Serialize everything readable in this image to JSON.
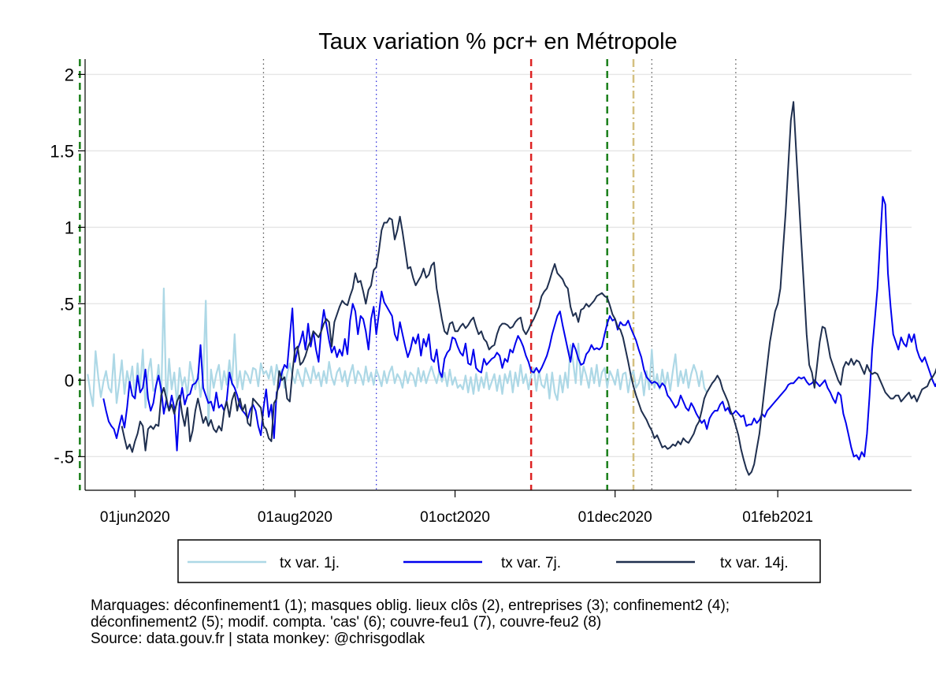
{
  "chart_data": {
    "type": "line",
    "title": "Taux variation % pcr+ en Métropole",
    "xlabel": "",
    "ylabel": "",
    "x_range": [
      "2020-05-13",
      "2021-03-24"
    ],
    "ylim": [
      -0.72,
      2.1
    ],
    "y_ticks": [
      {
        "v": 2,
        "label": "2"
      },
      {
        "v": 1.5,
        "label": "1.5"
      },
      {
        "v": 1,
        "label": "1"
      },
      {
        "v": 0.5,
        "label": ".5"
      },
      {
        "v": 0,
        "label": "0"
      },
      {
        "v": -0.5,
        "label": "-.5"
      }
    ],
    "x_ticks": [
      {
        "date": "2020-06-01",
        "label": "01jun2020"
      },
      {
        "date": "2020-08-01",
        "label": "01aug2020"
      },
      {
        "date": "2020-10-01",
        "label": "01oct2020"
      },
      {
        "date": "2020-12-01",
        "label": "01dec2020"
      },
      {
        "date": "2021-02-01",
        "label": "01feb2021"
      }
    ],
    "grid": true,
    "legend_position": "bottom",
    "vlines": [
      {
        "date": "2020-05-11",
        "color": "#1a7f1a",
        "style": "dashed"
      },
      {
        "date": "2020-07-20",
        "color": "#555555",
        "style": "dotted"
      },
      {
        "date": "2020-09-01",
        "color": "#3333dd",
        "style": "dotted"
      },
      {
        "date": "2020-10-30",
        "color": "#dd2222",
        "style": "dashed"
      },
      {
        "date": "2020-11-28",
        "color": "#1a7f1a",
        "style": "dashed"
      },
      {
        "date": "2020-12-08",
        "color": "#d4c080",
        "style": "dashdot"
      },
      {
        "date": "2020-12-15",
        "color": "#555555",
        "style": "dotted"
      },
      {
        "date": "2021-01-16",
        "color": "#555555",
        "style": "dotted"
      }
    ],
    "series": [
      {
        "name": "tx var. 1j.",
        "color": "#add8e6",
        "start": "2020-05-14",
        "values": [
          0.04,
          -0.08,
          -0.17,
          0.19,
          0.02,
          -0.11,
          -0.01,
          0.06,
          -0.05,
          -0.08,
          0.17,
          -0.15,
          -0.02,
          0.13,
          -0.09,
          0.06,
          -0.03,
          0.09,
          -0.12,
          0.11,
          -0.05,
          0.2,
          -0.18,
          0.05,
          0.14,
          -0.07,
          -0.05,
          0.1,
          -0.12,
          0.6,
          -0.18,
          0.14,
          -0.06,
          0.05,
          -0.16,
          0.08,
          -0.04,
          0.02,
          -0.1,
          0.12,
          0.03,
          -0.06,
          0.04,
          -0.11,
          0.02,
          0.52,
          -0.29,
          0.07,
          -0.05,
          0.04,
          0.1,
          -0.06,
          0.06,
          -0.03,
          0.13,
          -0.03,
          0.3,
          -0.05,
          0.06,
          -0.06,
          0.06,
          0.03,
          -0.02,
          0.08,
          0.07,
          -0.04,
          0.11,
          0.04,
          0.06,
          0.01,
          0.09,
          -0.03,
          0.1,
          0.02,
          0.07,
          -0.05,
          0.04,
          0.11,
          0.03,
          -0.02,
          0.07,
          0.01,
          -0.04,
          0.08,
          0.03,
          -0.02,
          0.09,
          0.01,
          0.05,
          -0.04,
          0.06,
          -0.02,
          0.12,
          0.02,
          -0.03,
          0.05,
          0.08,
          -0.01,
          0.06,
          -0.04,
          0.04,
          0.1,
          -0.02,
          0.06,
          0.03,
          -0.03,
          0.09,
          -0.01,
          0.05,
          -0.03,
          0.07,
          0.02,
          -0.04,
          0.06,
          -0.02,
          0.05,
          0.09,
          -0.02,
          0.04,
          0.01,
          -0.05,
          0.06,
          -0.02,
          0.05,
          0.03,
          -0.04,
          0.08,
          -0.01,
          0.06,
          -0.02,
          0.04,
          0.09,
          0.03,
          -0.02,
          0.06,
          -0.01,
          0.05,
          -0.04,
          0.07,
          -0.03,
          0.02,
          -0.05,
          -0.03,
          -0.06,
          0.03,
          -0.08,
          0.02,
          -0.09,
          0.04,
          -0.07,
          0.02,
          -0.05,
          0.05,
          -0.06,
          -0.01,
          0.04,
          -0.07,
          0.03,
          -0.09,
          0.04,
          -0.02,
          0.06,
          -0.08,
          0.05,
          -0.04,
          0.1,
          -0.02,
          0.04,
          -0.06,
          0.03,
          0.08,
          -0.07,
          0.06,
          -0.03,
          -0.05,
          0.04,
          -0.12,
          0.05,
          -0.08,
          -0.13,
          0.03,
          -0.08,
          0.05,
          -0.05,
          0.23,
          0.12,
          -0.02,
          0.24,
          -0.03,
          0.09,
          0.03,
          -0.05,
          0.08,
          -0.02,
          0.1,
          -0.04,
          0.05,
          0.08,
          -0.05,
          0.06,
          0.02,
          -0.03,
          0.07,
          -0.06,
          0.04,
          0.05,
          -0.08,
          0.03,
          0.06,
          -0.05,
          -0.02,
          0.05,
          -0.1,
          0.06,
          -0.06,
          0.2,
          -0.05,
          0.04,
          -0.06,
          0.07,
          -0.04,
          0.05,
          -0.07,
          0.06,
          0.17,
          -0.04,
          0.06,
          -0.02,
          0.07,
          -0.05,
          0.04,
          0.1,
          0.05,
          -0.04,
          0.06,
          -0.05,
          -0.08
        ]
      },
      {
        "name": "tx var. 7j.",
        "color": "#0000ee",
        "start": "2020-05-20",
        "values": [
          -0.12,
          -0.2,
          -0.27,
          -0.3,
          -0.32,
          -0.38,
          -0.3,
          -0.23,
          -0.31,
          -0.18,
          -0.01,
          -0.1,
          -0.12,
          0.03,
          -0.08,
          -0.05,
          0.07,
          -0.12,
          -0.2,
          -0.15,
          -0.04,
          0.03,
          -0.06,
          -0.22,
          -0.13,
          -0.2,
          -0.1,
          -0.18,
          -0.46,
          -0.15,
          -0.05,
          -0.16,
          -0.1,
          -0.09,
          -0.03,
          -0.02,
          0.01,
          0.23,
          -0.05,
          -0.1,
          -0.15,
          -0.14,
          -0.2,
          -0.08,
          -0.18,
          -0.16,
          -0.2,
          -0.13,
          0.05,
          -0.02,
          -0.05,
          -0.1,
          -0.17,
          -0.2,
          -0.22,
          -0.25,
          -0.19,
          -0.16,
          -0.2,
          -0.3,
          -0.36,
          -0.18,
          -0.06,
          -0.24,
          -0.16,
          -0.38,
          -0.08,
          -0.04,
          0.05,
          0.1,
          0.08,
          0.28,
          0.47,
          0.12,
          0.2,
          0.25,
          0.32,
          0.2,
          0.37,
          0.22,
          0.32,
          0.2,
          0.12,
          0.33,
          0.46,
          0.36,
          0.26,
          0.18,
          0.22,
          0.15,
          0.2,
          0.16,
          0.27,
          0.17,
          0.39,
          0.5,
          0.45,
          0.3,
          0.42,
          0.4,
          0.32,
          0.2,
          0.4,
          0.48,
          0.3,
          0.44,
          0.58,
          0.51,
          0.48,
          0.45,
          0.42,
          0.3,
          0.26,
          0.38,
          0.3,
          0.22,
          0.15,
          0.2,
          0.28,
          0.24,
          0.3,
          0.16,
          0.27,
          0.22,
          0.3,
          0.14,
          0.12,
          0.2,
          0.06,
          0.02,
          0.14,
          0.18,
          0.2,
          0.28,
          0.27,
          0.22,
          0.18,
          0.16,
          0.24,
          0.11,
          0.1,
          0.2,
          0.08,
          0.06,
          0.05,
          0.14,
          0.1,
          0.12,
          0.14,
          0.15,
          0.18,
          0.16,
          0.08,
          0.14,
          0.12,
          0.2,
          0.18,
          0.24,
          0.29,
          0.26,
          0.22,
          0.16,
          0.12,
          0.06,
          0.05,
          0.08,
          0.05,
          0.08,
          0.12,
          0.16,
          0.22,
          0.3,
          0.36,
          0.42,
          0.45,
          0.36,
          0.28,
          0.2,
          0.12,
          0.24,
          0.2,
          0.14,
          0.1,
          0.11,
          0.17,
          0.19,
          0.23,
          0.2,
          0.21,
          0.2,
          0.22,
          0.3,
          0.37,
          0.42,
          0.39,
          0.4,
          0.33,
          0.38,
          0.36,
          0.36,
          0.39,
          0.34,
          0.3,
          0.26,
          0.2,
          0.15,
          0.07,
          0.02,
          0.0,
          -0.02,
          -0.01,
          -0.02,
          -0.05,
          -0.02,
          -0.04,
          -0.1,
          -0.12,
          -0.15,
          -0.18,
          -0.16,
          -0.1,
          -0.14,
          -0.18,
          -0.2,
          -0.15,
          -0.18,
          -0.22,
          -0.25,
          -0.28,
          -0.26,
          -0.32,
          -0.25,
          -0.22,
          -0.2,
          -0.2,
          -0.16,
          -0.14,
          -0.2,
          -0.18,
          -0.22,
          -0.22,
          -0.2,
          -0.22,
          -0.24,
          -0.23,
          -0.3,
          -0.29,
          -0.29,
          -0.25,
          -0.28,
          -0.26,
          -0.22,
          -0.24,
          -0.2,
          -0.18,
          -0.16,
          -0.14,
          -0.12,
          -0.1,
          -0.08,
          -0.06,
          -0.03,
          -0.02,
          -0.02,
          0.0,
          0.02,
          0.01,
          0.02,
          -0.01,
          -0.03,
          -0.02,
          0.0,
          -0.02,
          -0.04,
          -0.02,
          0.0,
          -0.05,
          -0.08,
          -0.12,
          -0.15,
          -0.08,
          -0.1,
          -0.22,
          -0.28,
          -0.36,
          -0.44,
          -0.5,
          -0.49,
          -0.52,
          -0.47,
          -0.5,
          -0.35,
          -0.1,
          0.2,
          0.4,
          0.6,
          0.9,
          1.2,
          1.15,
          0.7,
          0.48,
          0.3,
          0.25,
          0.2,
          0.28,
          0.24,
          0.22,
          0.3,
          0.25,
          0.3,
          0.2,
          0.15,
          0.12,
          0.15,
          0.1,
          0.05,
          0.0,
          -0.04,
          0.0,
          0.07,
          0.09,
          0.07,
          0.05,
          0.06,
          0.1,
          0.08,
          0.02,
          0.07,
          0.03,
          0.02,
          0.06,
          0.04,
          0.0,
          -0.05,
          -0.07,
          -0.03,
          -0.08,
          -0.03,
          0.02,
          0.1,
          0.1,
          0.06,
          -0.06,
          -0.05,
          -0.1,
          -0.11,
          -0.13,
          -0.1,
          -0.08,
          -0.1,
          -0.14,
          -0.13,
          -0.1,
          -0.05,
          -0.1,
          -0.04,
          -0.08,
          -0.1,
          -0.03,
          -0.06,
          -0.08,
          -0.05,
          -0.04,
          -0.03,
          -0.01,
          0.0,
          0.05,
          0.07,
          0.06,
          0.1,
          0.1,
          0.18,
          0.19,
          0.2,
          0.18,
          0.17,
          0.2,
          0.12,
          0.1,
          0.08,
          0.02
        ]
      },
      {
        "name": "tx var. 14j.",
        "color": "#1f2f4f",
        "start": "2020-05-27",
        "values": [
          -0.3,
          -0.38,
          -0.45,
          -0.42,
          -0.47,
          -0.4,
          -0.35,
          -0.27,
          -0.3,
          -0.46,
          -0.32,
          -0.3,
          -0.32,
          -0.29,
          -0.3,
          -0.1,
          -0.05,
          -0.12,
          -0.2,
          -0.16,
          -0.22,
          -0.14,
          -0.1,
          -0.22,
          -0.3,
          -0.18,
          -0.4,
          -0.33,
          -0.2,
          -0.12,
          -0.2,
          -0.28,
          -0.24,
          -0.3,
          -0.26,
          -0.32,
          -0.34,
          -0.3,
          -0.33,
          -0.2,
          -0.14,
          -0.24,
          -0.13,
          -0.08,
          -0.2,
          -0.12,
          -0.2,
          -0.16,
          -0.28,
          -0.3,
          -0.12,
          -0.14,
          -0.16,
          -0.18,
          -0.3,
          -0.32,
          -0.38,
          -0.4,
          -0.15,
          -0.12,
          0.06,
          0.0,
          0.02,
          -0.12,
          -0.14,
          0.05,
          0.2,
          0.22,
          0.1,
          0.12,
          0.16,
          0.22,
          0.26,
          0.32,
          0.3,
          0.28,
          0.32,
          0.37,
          0.4,
          0.38,
          0.22,
          0.38,
          0.43,
          0.48,
          0.52,
          0.5,
          0.49,
          0.55,
          0.6,
          0.7,
          0.64,
          0.65,
          0.58,
          0.5,
          0.59,
          0.62,
          0.72,
          0.74,
          0.85,
          0.98,
          1.03,
          1.03,
          1.06,
          1.05,
          0.92,
          0.98,
          1.07,
          0.97,
          0.85,
          0.73,
          0.74,
          0.67,
          0.62,
          0.65,
          0.68,
          0.73,
          0.67,
          0.69,
          0.75,
          0.77,
          0.6,
          0.5,
          0.4,
          0.32,
          0.3,
          0.37,
          0.38,
          0.32,
          0.32,
          0.35,
          0.37,
          0.34,
          0.36,
          0.39,
          0.41,
          0.35,
          0.3,
          0.32,
          0.27,
          0.25,
          0.2,
          0.22,
          0.23,
          0.3,
          0.35,
          0.37,
          0.37,
          0.36,
          0.34,
          0.35,
          0.38,
          0.4,
          0.41,
          0.33,
          0.3,
          0.33,
          0.37,
          0.4,
          0.44,
          0.48,
          0.55,
          0.58,
          0.6,
          0.65,
          0.71,
          0.76,
          0.7,
          0.68,
          0.66,
          0.62,
          0.6,
          0.48,
          0.42,
          0.44,
          0.38,
          0.46,
          0.47,
          0.5,
          0.48,
          0.5,
          0.52,
          0.55,
          0.56,
          0.57,
          0.55,
          0.54,
          0.49,
          0.43,
          0.4,
          0.35,
          0.33,
          0.28,
          0.2,
          0.12,
          0.03,
          -0.04,
          -0.1,
          -0.15,
          -0.2,
          -0.23,
          -0.26,
          -0.3,
          -0.33,
          -0.38,
          -0.36,
          -0.4,
          -0.44,
          -0.43,
          -0.45,
          -0.44,
          -0.42,
          -0.43,
          -0.4,
          -0.42,
          -0.38,
          -0.4,
          -0.41,
          -0.38,
          -0.35,
          -0.3,
          -0.27,
          -0.2,
          -0.12,
          -0.08,
          -0.05,
          -0.02,
          0.0,
          0.03,
          0.0,
          -0.06,
          -0.1,
          -0.14,
          -0.2,
          -0.24,
          -0.3,
          -0.36,
          -0.45,
          -0.52,
          -0.58,
          -0.62,
          -0.6,
          -0.55,
          -0.45,
          -0.35,
          -0.2,
          -0.05,
          0.1,
          0.25,
          0.35,
          0.45,
          0.5,
          0.6,
          0.85,
          1.1,
          1.4,
          1.7,
          1.82,
          1.5,
          1.2,
          0.9,
          0.6,
          0.3,
          0.1,
          0.05,
          -0.05,
          0.1,
          0.25,
          0.35,
          0.34,
          0.25,
          0.15,
          0.1,
          0.05,
          0.0,
          -0.03,
          0.08,
          0.12,
          0.1,
          0.14,
          0.1,
          0.13,
          0.12,
          0.08,
          0.04,
          0.1,
          0.06,
          0.04,
          0.05,
          0.04,
          0.0,
          -0.04,
          -0.08,
          -0.1,
          -0.12,
          -0.12,
          -0.1,
          -0.1,
          -0.14,
          -0.12,
          -0.1,
          -0.08,
          -0.12,
          -0.1,
          -0.14,
          -0.1,
          -0.06,
          -0.05,
          -0.04,
          0.0,
          0.02,
          0.05,
          0.1,
          0.15,
          0.18,
          0.2,
          0.22,
          0.24,
          0.25,
          0.22,
          0.25,
          0.22,
          0.26,
          0.21
        ]
      }
    ]
  },
  "notes": {
    "line1": "Marquages: déconfinement1 (1); masques oblig. lieux clôs (2), entreprises (3); confinement2 (4);",
    "line2": "déconfinement2 (5); modif. compta. 'cas' (6); couvre-feu1 (7), couvre-feu2 (8)",
    "line3": "Source: data.gouv.fr | stata monkey: @chrisgodlak"
  }
}
